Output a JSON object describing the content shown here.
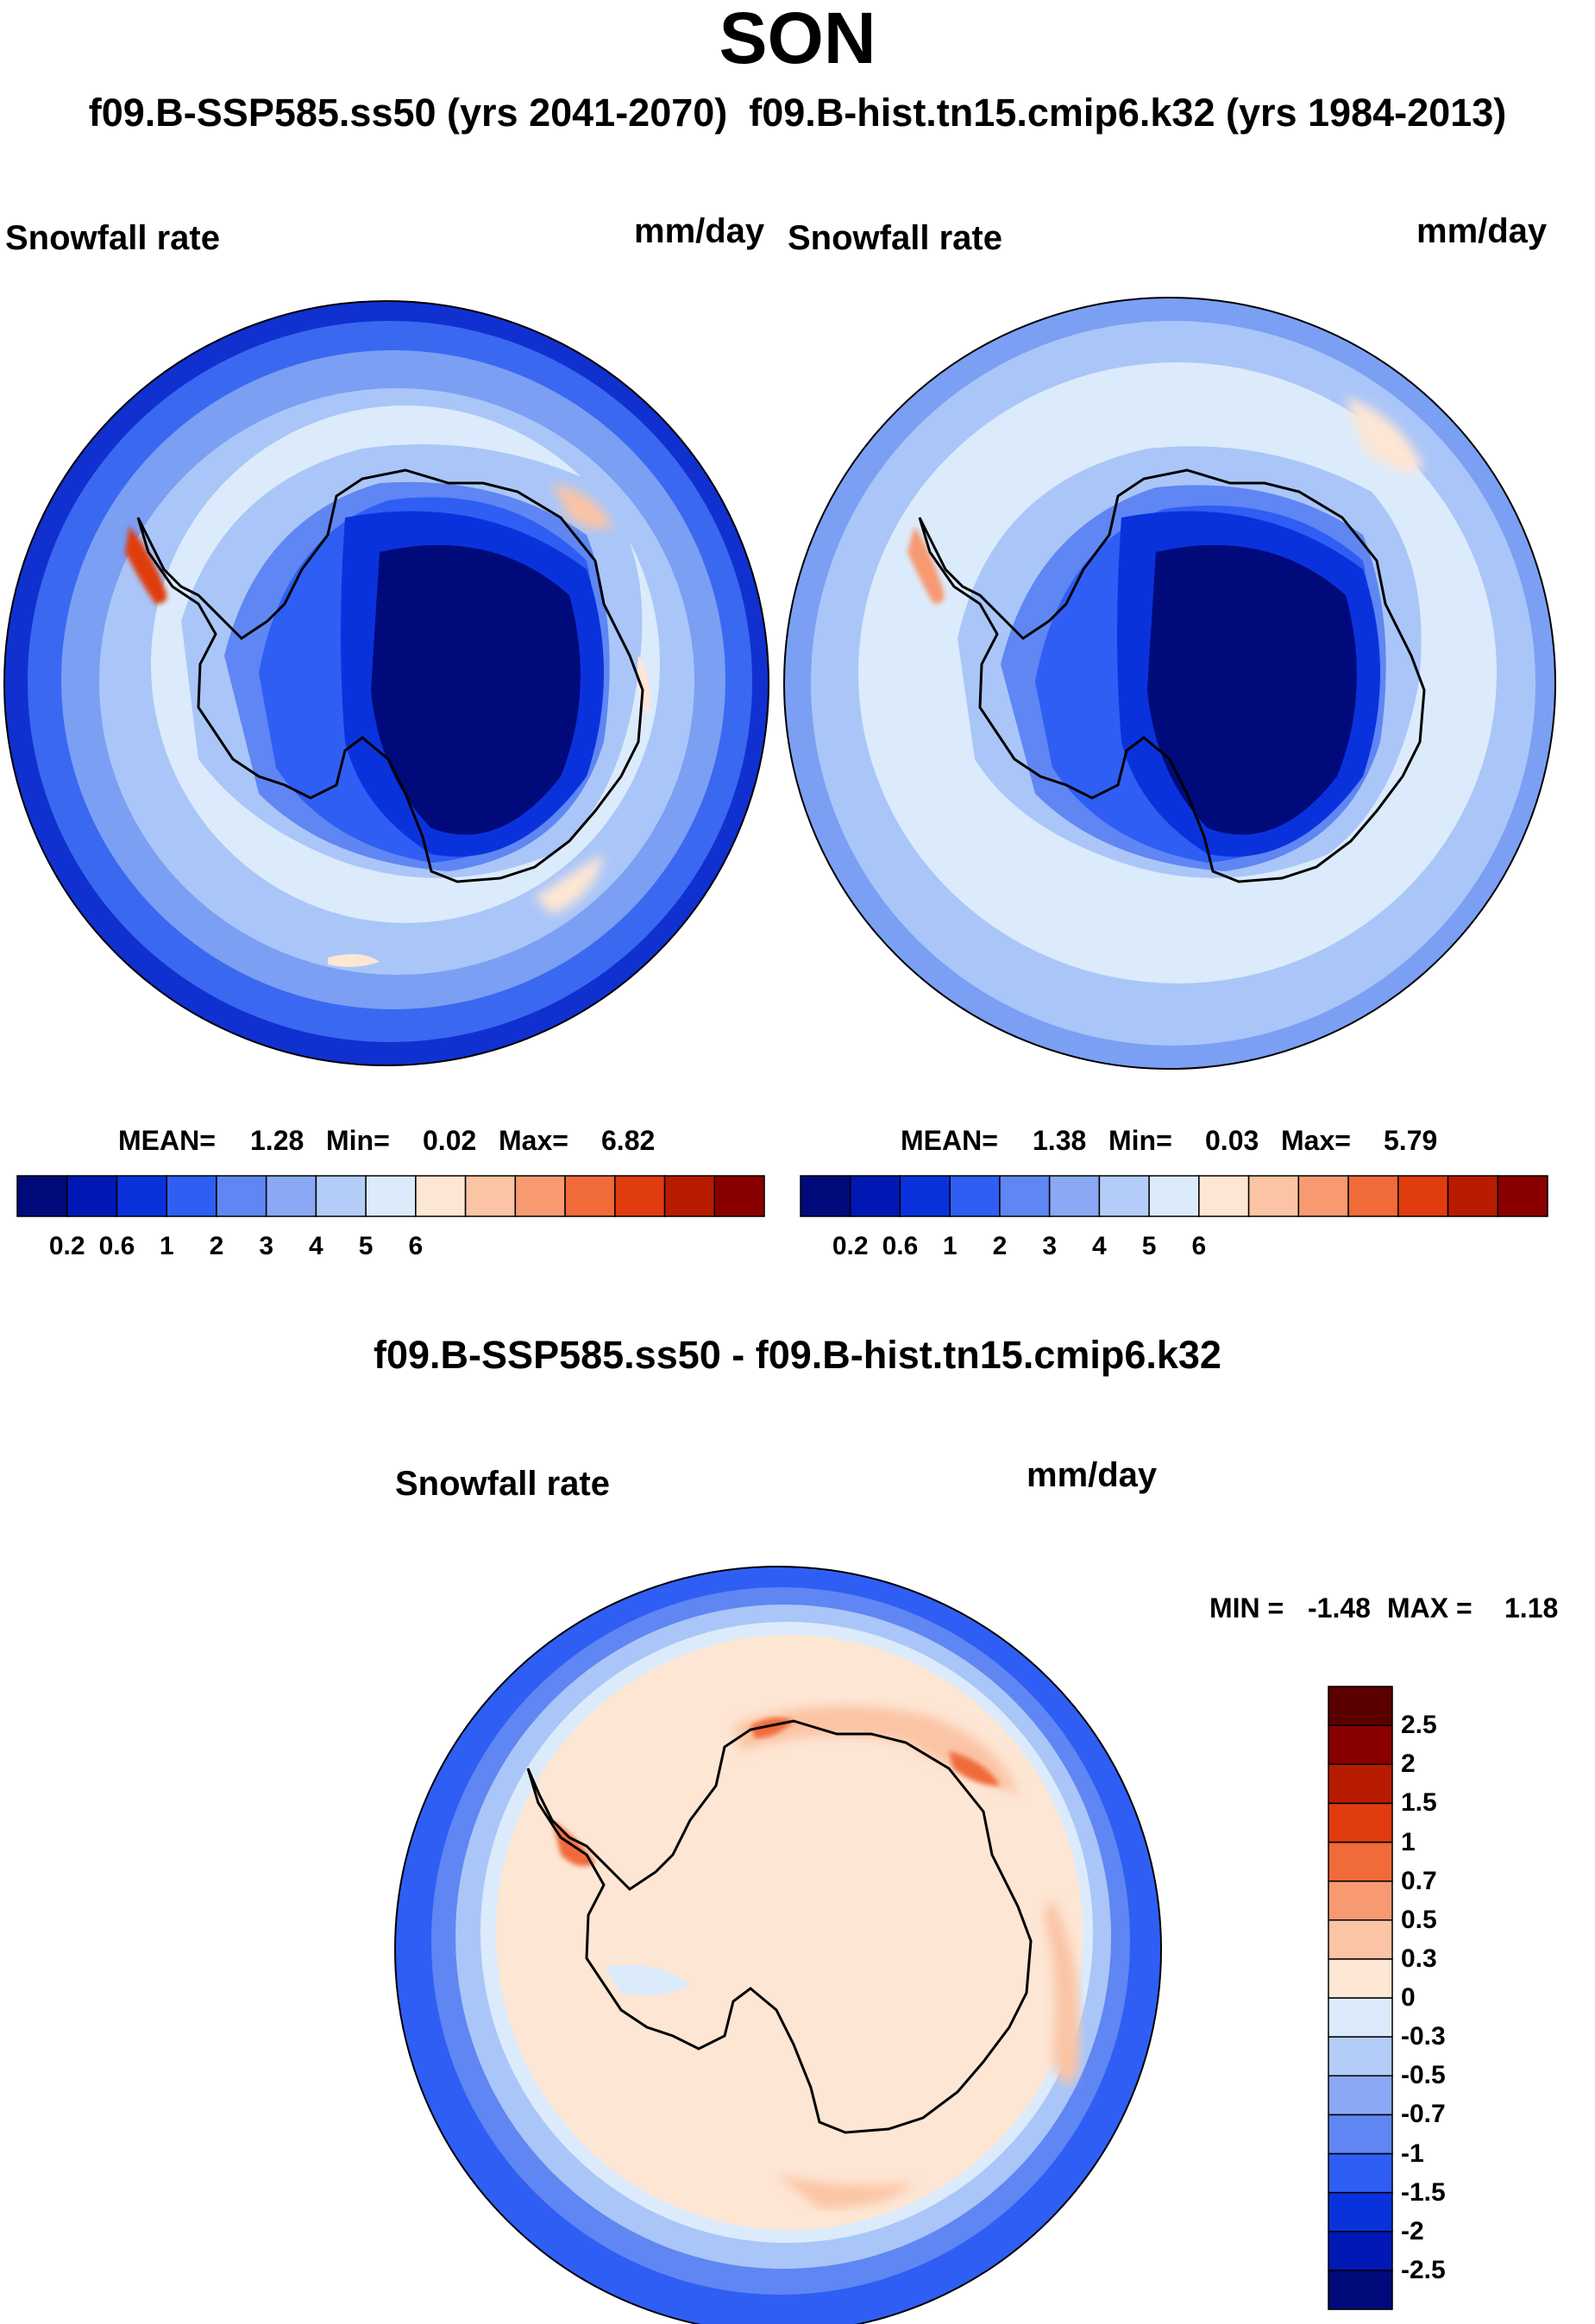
{
  "figure": {
    "title": "SON",
    "subtitle": "f09.B-SSP585.ss50 (yrs 2041-2070)  f09.B-hist.tn15.cmip6.k32 (yrs 1984-2013)",
    "diff_title": "f09.B-SSP585.ss50 - f09.B-hist.tn15.cmip6.k32"
  },
  "chart_data": [
    {
      "type": "heatmap",
      "projection": "south-polar-stereographic",
      "variable": "Snowfall rate",
      "units": "mm/day",
      "case": "f09.B-SSP585.ss50 (yrs 2041-2070)",
      "stats": {
        "mean_label": "MEAN=",
        "mean": "1.28",
        "min_label": "Min=",
        "min": "0.02",
        "max_label": "Max=",
        "max": "6.82"
      },
      "colorbar": {
        "orientation": "horizontal",
        "levels": [
          0.2,
          0.6,
          1,
          2,
          3,
          4,
          5,
          6
        ],
        "tick_labels": [
          "0.2",
          "0.6",
          "1",
          "2",
          "3",
          "4",
          "5",
          "6"
        ],
        "colors": [
          "#000a7a",
          "#0018b4",
          "#0a32dc",
          "#2f5ef4",
          "#5f86f2",
          "#8aa8f4",
          "#b4cdf8",
          "#dcebfb",
          "#fde6d4",
          "#fbc4a4",
          "#f79a72",
          "#f06a3a",
          "#e03c10",
          "#b81c00",
          "#8a0000"
        ]
      }
    },
    {
      "type": "heatmap",
      "projection": "south-polar-stereographic",
      "variable": "Snowfall rate",
      "units": "mm/day",
      "case": "f09.B-hist.tn15.cmip6.k32 (yrs 1984-2013)",
      "stats": {
        "mean_label": "MEAN=",
        "mean": "1.38",
        "min_label": "Min=",
        "min": "0.03",
        "max_label": "Max=",
        "max": "5.79"
      },
      "colorbar": {
        "orientation": "horizontal",
        "levels": [
          0.2,
          0.6,
          1,
          2,
          3,
          4,
          5,
          6
        ],
        "tick_labels": [
          "0.2",
          "0.6",
          "1",
          "2",
          "3",
          "4",
          "5",
          "6"
        ],
        "colors": [
          "#000a7a",
          "#0018b4",
          "#0a32dc",
          "#2f5ef4",
          "#5f86f2",
          "#8aa8f4",
          "#b4cdf8",
          "#dcebfb",
          "#fde6d4",
          "#fbc4a4",
          "#f79a72",
          "#f06a3a",
          "#e03c10",
          "#b81c00",
          "#8a0000"
        ]
      }
    },
    {
      "type": "heatmap",
      "projection": "south-polar-stereographic",
      "variable": "Snowfall rate",
      "units": "mm/day",
      "case": "f09.B-SSP585.ss50 - f09.B-hist.tn15.cmip6.k32",
      "stats": {
        "min_label": "MIN =",
        "min": "-1.48",
        "max_label": "MAX =",
        "max": "1.18"
      },
      "colorbar": {
        "orientation": "vertical",
        "levels": [
          -2.5,
          -2,
          -1.5,
          -1,
          -0.7,
          -0.5,
          -0.3,
          0,
          0.3,
          0.5,
          0.7,
          1,
          1.5,
          2,
          2.5
        ],
        "tick_labels": [
          "-2.5",
          "-2",
          "-1.5",
          "-1",
          "-0.7",
          "-0.5",
          "-0.3",
          "0",
          "0.3",
          "0.5",
          "0.7",
          "1",
          "1.5",
          "2",
          "2.5"
        ],
        "colors": [
          "#000a7a",
          "#0018b4",
          "#0a32dc",
          "#2f5ef4",
          "#5f86f2",
          "#8aa8f4",
          "#b4cdf8",
          "#dcebfb",
          "#fde6d4",
          "#fbc4a4",
          "#f79a72",
          "#f06a3a",
          "#e03c10",
          "#b81c00",
          "#8a0000",
          "#5a0000"
        ]
      }
    }
  ]
}
